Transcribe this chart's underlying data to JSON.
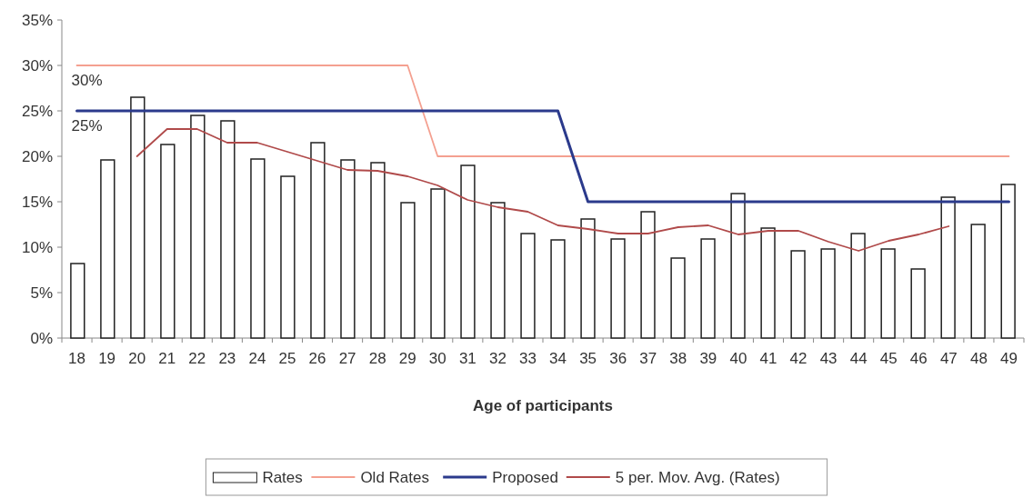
{
  "chart_data": {
    "type": "bar",
    "xlabel": "Age of participants",
    "categories": [
      "18",
      "19",
      "20",
      "21",
      "22",
      "23",
      "24",
      "25",
      "26",
      "27",
      "28",
      "29",
      "30",
      "31",
      "32",
      "33",
      "34",
      "35",
      "36",
      "37",
      "38",
      "39",
      "40",
      "41",
      "42",
      "43",
      "44",
      "45",
      "46",
      "47",
      "48",
      "49"
    ],
    "series": [
      {
        "name": "Rates",
        "color": "#ffffff",
        "values": [
          8.2,
          19.6,
          26.5,
          21.3,
          24.5,
          23.9,
          19.7,
          17.8,
          21.5,
          19.6,
          19.3,
          14.9,
          16.4,
          19.0,
          14.9,
          11.5,
          10.8,
          13.1,
          10.9,
          13.9,
          8.8,
          10.9,
          15.9,
          12.1,
          9.6,
          9.8,
          11.5,
          9.8,
          7.6,
          15.5,
          12.5,
          16.9
        ]
      },
      {
        "name": "Old Rates",
        "type": "line",
        "color": "#f4a090",
        "values": [
          30,
          30,
          30,
          30,
          30,
          30,
          30,
          30,
          30,
          30,
          30,
          30,
          20,
          20,
          20,
          20,
          20,
          20,
          20,
          20,
          20,
          20,
          20,
          20,
          20,
          20,
          20,
          20,
          20,
          20,
          20,
          20
        ]
      },
      {
        "name": "Proposed",
        "type": "line",
        "color": "#2b3a8c",
        "values": [
          25,
          25,
          25,
          25,
          25,
          25,
          25,
          25,
          25,
          25,
          25,
          25,
          25,
          25,
          25,
          25,
          25,
          15,
          15,
          15,
          15,
          15,
          15,
          15,
          15,
          15,
          15,
          15,
          15,
          15,
          15,
          15
        ]
      },
      {
        "name": "5 per. Mov. Avg. (Rates)",
        "type": "line",
        "color": "#b04a4a",
        "values": [
          null,
          null,
          20.0,
          23.0,
          23.0,
          21.5,
          21.5,
          20.5,
          19.5,
          18.5,
          18.4,
          17.8,
          16.8,
          15.2,
          14.4,
          13.9,
          12.4,
          12.0,
          11.5,
          11.5,
          12.2,
          12.4,
          11.4,
          11.8,
          11.8,
          10.6,
          9.6,
          10.7,
          11.4,
          12.3,
          null,
          null
        ]
      }
    ],
    "ylim": [
      0,
      35
    ],
    "yticks": [
      {
        "value": 0,
        "label": "0%"
      },
      {
        "value": 5,
        "label": "5%"
      },
      {
        "value": 10,
        "label": "10%"
      },
      {
        "value": 15,
        "label": "15%"
      },
      {
        "value": 20,
        "label": "20%"
      },
      {
        "value": 25,
        "label": "25%"
      },
      {
        "value": 30,
        "label": "30%"
      },
      {
        "value": 35,
        "label": "35%"
      }
    ],
    "annotations": [
      {
        "text": "30%",
        "x": "18",
        "y": 30
      },
      {
        "text": "25%",
        "x": "18",
        "y": 25
      }
    ],
    "grid": false,
    "legend": "bottom"
  }
}
